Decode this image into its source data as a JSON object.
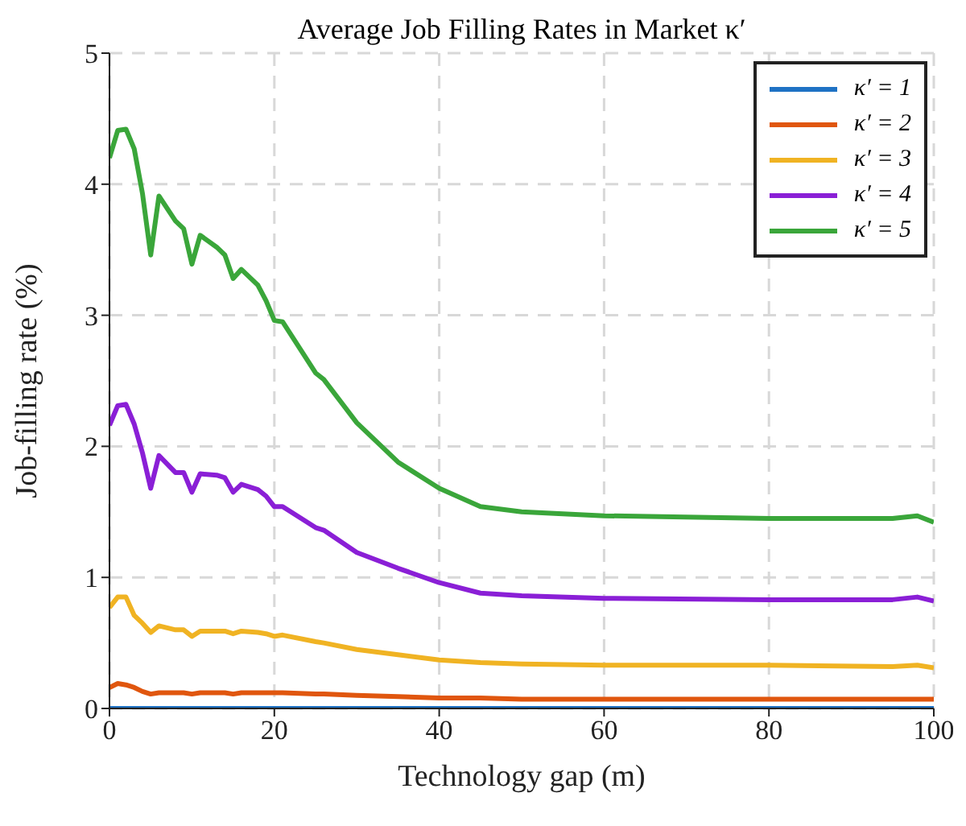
{
  "chart_data": {
    "type": "line",
    "title": "Average Job Filling Rates in Market κ′",
    "xlabel": "Technology gap (m)",
    "ylabel": "Job-filling rate (%)",
    "x": [
      0,
      1,
      2,
      3,
      4,
      5,
      6,
      8,
      9,
      10,
      11,
      13,
      14,
      15,
      16,
      18,
      19,
      20,
      21,
      25,
      26,
      30,
      35,
      40,
      45,
      50,
      60,
      80,
      95,
      98,
      100
    ],
    "xlim": [
      0,
      100
    ],
    "xticks": [
      0,
      20,
      40,
      60,
      80,
      100
    ],
    "ylim": [
      0,
      5
    ],
    "yticks": [
      0,
      1,
      2,
      3,
      4,
      5
    ],
    "grid": true,
    "legend": "top right",
    "marker": "none",
    "line_style": "solid",
    "series": [
      {
        "name": "κ′ = 1",
        "color": "#1f72c4",
        "values": [
          0,
          0,
          0,
          0,
          0,
          0,
          0,
          0,
          0,
          0,
          0,
          0,
          0,
          0,
          0,
          0,
          0,
          0,
          0,
          0,
          0,
          0,
          0,
          0,
          0,
          0,
          0,
          0,
          0,
          0,
          0
        ]
      },
      {
        "name": "κ′ = 2",
        "color": "#e0560e",
        "values": [
          0.16,
          0.19,
          0.18,
          0.16,
          0.13,
          0.11,
          0.12,
          0.12,
          0.12,
          0.11,
          0.12,
          0.12,
          0.12,
          0.11,
          0.12,
          0.12,
          0.12,
          0.12,
          0.12,
          0.11,
          0.11,
          0.1,
          0.09,
          0.08,
          0.08,
          0.07,
          0.07,
          0.07,
          0.07,
          0.07,
          0.07
        ]
      },
      {
        "name": "κ′ = 3",
        "color": "#f0b323",
        "values": [
          0.77,
          0.85,
          0.85,
          0.71,
          0.65,
          0.58,
          0.63,
          0.6,
          0.6,
          0.55,
          0.59,
          0.59,
          0.59,
          0.57,
          0.59,
          0.58,
          0.57,
          0.55,
          0.56,
          0.51,
          0.5,
          0.45,
          0.41,
          0.37,
          0.35,
          0.34,
          0.33,
          0.33,
          0.32,
          0.33,
          0.31
        ]
      },
      {
        "name": "κ′ = 4",
        "color": "#8a1fd6",
        "values": [
          2.16,
          2.31,
          2.32,
          2.17,
          1.95,
          1.68,
          1.93,
          1.8,
          1.8,
          1.65,
          1.79,
          1.78,
          1.76,
          1.65,
          1.71,
          1.67,
          1.62,
          1.54,
          1.54,
          1.38,
          1.36,
          1.19,
          1.07,
          0.96,
          0.88,
          0.86,
          0.84,
          0.83,
          0.83,
          0.85,
          0.82
        ]
      },
      {
        "name": "κ′ = 5",
        "color": "#3aa63a",
        "values": [
          4.2,
          4.41,
          4.42,
          4.27,
          3.93,
          3.46,
          3.91,
          3.72,
          3.66,
          3.39,
          3.61,
          3.52,
          3.46,
          3.28,
          3.35,
          3.23,
          3.11,
          2.96,
          2.95,
          2.56,
          2.51,
          2.18,
          1.88,
          1.68,
          1.54,
          1.5,
          1.47,
          1.45,
          1.45,
          1.47,
          1.42
        ]
      }
    ]
  }
}
